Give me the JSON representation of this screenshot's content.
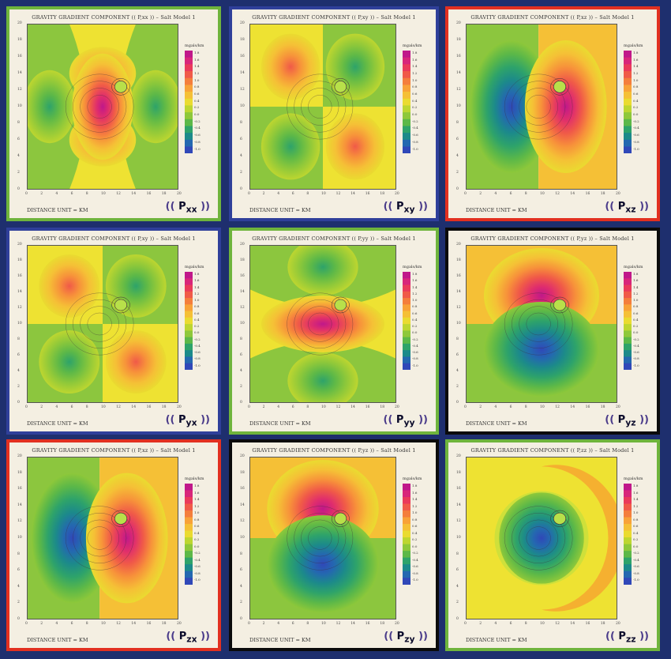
{
  "colors": {
    "background": "#1e2f6e",
    "border_green": "#6fb43c",
    "border_blue": "#2f3f9a",
    "border_red": "#e23020",
    "border_black": "#0b0b0b"
  },
  "panels": [
    {
      "title": "GRAVITY GRADIENT COMPONENT (( P,xx )) – Salt Model 1",
      "footer": "DISTANCE UNIT = KM",
      "tag_sub": "xx",
      "unit": "mgals/km",
      "border": "border_green",
      "pattern": "xx"
    },
    {
      "title": "GRAVITY GRADIENT COMPONENT (( P,xy )) – Salt Model 1",
      "footer": "DISTANCE UNIT = KM",
      "tag_sub": "xy",
      "unit": "mgals/km",
      "border": "border_blue",
      "pattern": "xy"
    },
    {
      "title": "GRAVITY GRADIENT COMPONENT (( P,xz )) – Salt Model 1",
      "footer": "DISTANCE UNIT = KM",
      "tag_sub": "xz",
      "unit": "mgals/km",
      "border": "border_red",
      "pattern": "xz"
    },
    {
      "title": "GRAVITY GRADIENT COMPONENT (( P,xy )) – Salt Model 1",
      "footer": "DISTANCE UNIT = KM",
      "tag_sub": "yx",
      "unit": "mgals/km",
      "border": "border_blue",
      "pattern": "xy"
    },
    {
      "title": "GRAVITY GRADIENT COMPONENT (( P,yy )) – Salt Model 1",
      "footer": "DISTANCE UNIT = KM",
      "tag_sub": "yy",
      "unit": "mgals/km",
      "border": "border_green",
      "pattern": "yy"
    },
    {
      "title": "GRAVITY GRADIENT COMPONENT (( P,yz )) – Salt Model 1",
      "footer": "DISTANCE UNIT = KM",
      "tag_sub": "yz",
      "unit": "mgals/km",
      "border": "border_black",
      "pattern": "yz"
    },
    {
      "title": "GRAVITY GRADIENT COMPONENT (( P,xz )) – Salt Model 1",
      "footer": "DISTANCE UNIT = KM",
      "tag_sub": "zx",
      "unit": "mgals/km",
      "border": "border_red",
      "pattern": "xz"
    },
    {
      "title": "GRAVITY GRADIENT COMPONENT (( P,yz )) – Salt Model 1",
      "footer": "DISTANCE UNIT = KM",
      "tag_sub": "zy",
      "unit": "mgals/km",
      "border": "border_black",
      "pattern": "yz"
    },
    {
      "title": "GRAVITY GRADIENT COMPONENT (( P,zz )) – Salt Model 1",
      "footer": "DISTANCE UNIT = KM",
      "tag_sub": "zz",
      "unit": "mgals/km",
      "border": "border_green",
      "pattern": "zz"
    }
  ],
  "y_ticks": [
    "20",
    "18",
    "16",
    "14",
    "12",
    "10",
    "8",
    "6",
    "4",
    "2",
    "0"
  ],
  "x_ticks": [
    "0",
    "2",
    "4",
    "6",
    "8",
    "10",
    "12",
    "14",
    "16",
    "18",
    "20"
  ],
  "colorbar": {
    "colors": [
      "#c0188a",
      "#d8267a",
      "#ea3a5a",
      "#f05a48",
      "#f47e3c",
      "#f8a238",
      "#f5c036",
      "#eadb30",
      "#bdd630",
      "#8ec83a",
      "#5cb848",
      "#2ea36a",
      "#1c8a8a",
      "#2468b0",
      "#3048b8"
    ],
    "labels": [
      "1.8",
      "1.6",
      "1.4",
      "1.2",
      "1.0",
      "0.8",
      "0.6",
      "0.4",
      "0.2",
      "0.0",
      "-0.2",
      "-0.4",
      "-0.6",
      "-0.8",
      "-1.0"
    ]
  }
}
